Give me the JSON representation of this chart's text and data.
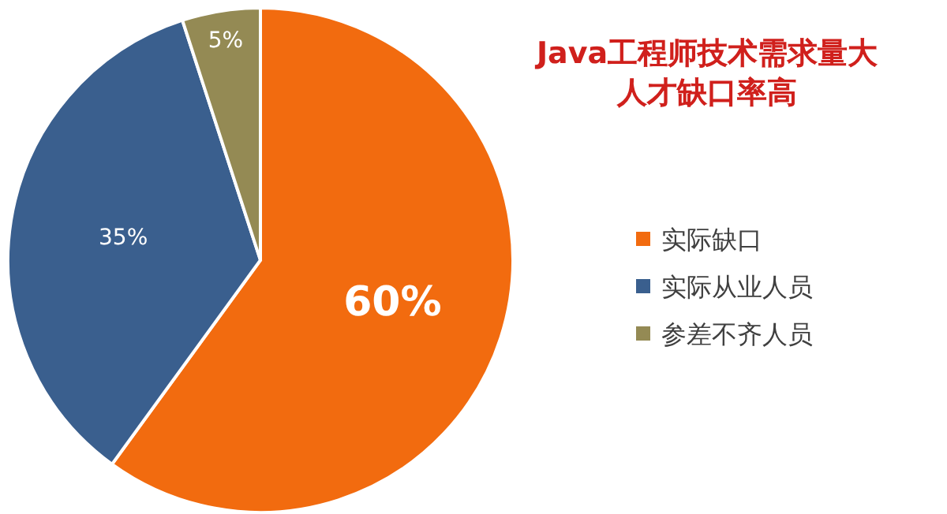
{
  "chart_data": {
    "type": "pie",
    "title": "Java工程师技术需求量大人才缺口率高",
    "categories": [
      "实际缺口",
      "实际从业人员",
      "参差不齐人员"
    ],
    "values": [
      60,
      35,
      5
    ],
    "colors": [
      "#f26b0f",
      "#3a5f8e",
      "#948a54"
    ],
    "value_labels": [
      "60%",
      "35%",
      "5%"
    ],
    "legend": "right"
  }
}
